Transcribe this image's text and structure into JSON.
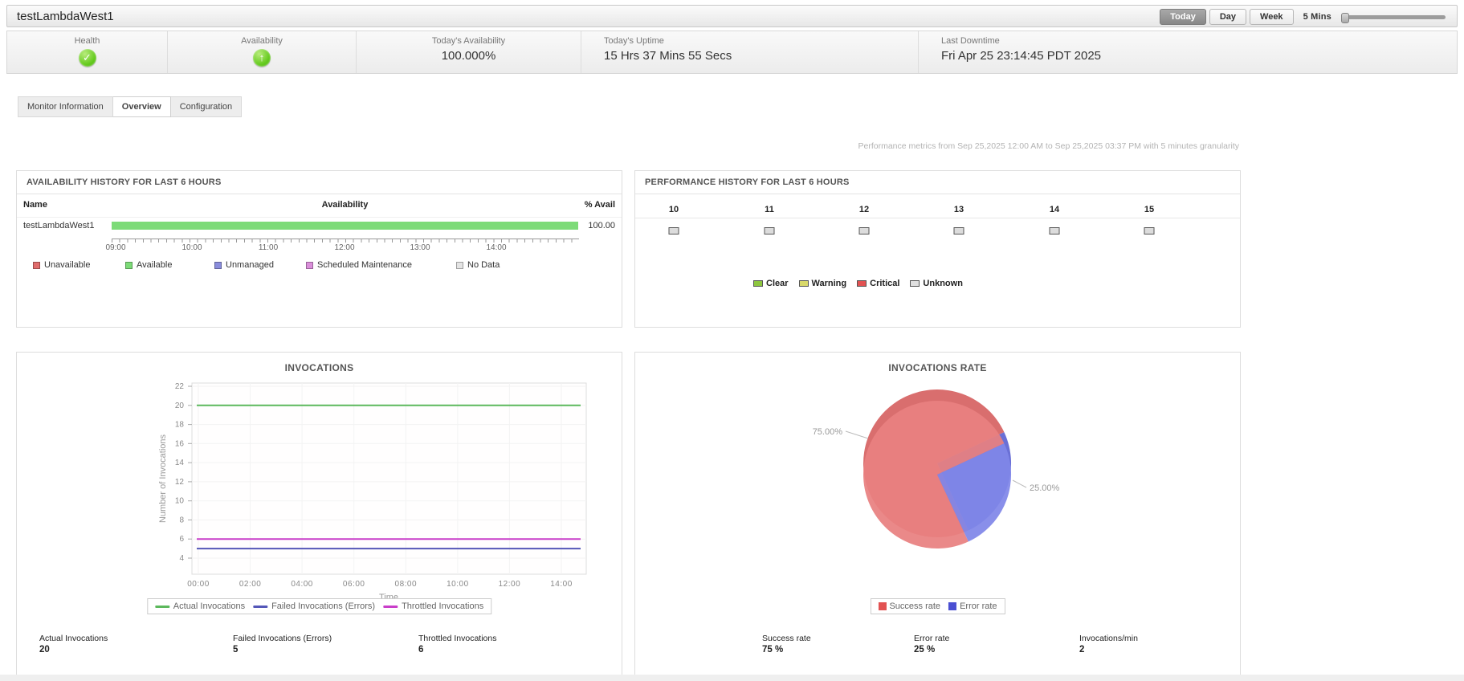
{
  "header": {
    "title": "testLambdaWest1",
    "range_buttons": [
      {
        "label": "Today",
        "active": true
      },
      {
        "label": "Day",
        "active": false
      },
      {
        "label": "Week",
        "active": false
      }
    ],
    "granularity": "5 Mins"
  },
  "status_bar": {
    "health": {
      "label": "Health",
      "icon": "check",
      "color": "#5bc617"
    },
    "availability": {
      "label": "Availability",
      "icon": "up-arrow",
      "color": "#5bc617"
    },
    "todays_availability": {
      "label": "Today's Availability",
      "value": "100.000%"
    },
    "todays_uptime": {
      "label": "Today's Uptime",
      "value": "15 Hrs 37 Mins 55 Secs"
    },
    "last_downtime": {
      "label": "Last Downtime",
      "value": "Fri Apr 25 23:14:45 PDT 2025"
    }
  },
  "tabs": [
    {
      "label": "Monitor Information",
      "active": false
    },
    {
      "label": "Overview",
      "active": true
    },
    {
      "label": "Configuration",
      "active": false
    }
  ],
  "metrics_note": "Performance metrics from Sep 25,2025 12:00 AM to Sep 25,2025 03:37 PM with 5 minutes granularity",
  "availability_panel": {
    "title": "AVAILABILITY HISTORY FOR LAST 6 HOURS",
    "columns": {
      "name": "Name",
      "availability": "Availability",
      "avail_pct": "% Avail"
    },
    "row": {
      "name": "testLambdaWest1",
      "avail_pct": "100.00",
      "bar_color": "#7ddb78"
    },
    "time_ticks": [
      "09:00",
      "10:00",
      "11:00",
      "12:00",
      "13:00",
      "14:00"
    ],
    "legend": [
      {
        "label": "Unavailable",
        "color": "#e06c6c"
      },
      {
        "label": "Available",
        "color": "#7ddb78"
      },
      {
        "label": "Unmanaged",
        "color": "#8a8ddc"
      },
      {
        "label": "Scheduled Maintenance",
        "color": "#da8fda"
      },
      {
        "label": "No Data",
        "color": "#e4e4e4"
      }
    ]
  },
  "performance_panel": {
    "title": "PERFORMANCE HISTORY FOR LAST 6 HOURS",
    "hours": [
      {
        "label": "10",
        "status": "Unknown",
        "color": "#dcdcdc"
      },
      {
        "label": "11",
        "status": "Unknown",
        "color": "#dcdcdc"
      },
      {
        "label": "12",
        "status": "Unknown",
        "color": "#dcdcdc"
      },
      {
        "label": "13",
        "status": "Unknown",
        "color": "#dcdcdc"
      },
      {
        "label": "14",
        "status": "Unknown",
        "color": "#dcdcdc"
      },
      {
        "label": "15",
        "status": "Unknown",
        "color": "#dcdcdc"
      }
    ],
    "legend": [
      {
        "label": "Clear",
        "color": "#8dc63f"
      },
      {
        "label": "Warning",
        "color": "#d9d96a"
      },
      {
        "label": "Critical",
        "color": "#e25252"
      },
      {
        "label": "Unknown",
        "color": "#e0e0e0"
      }
    ]
  },
  "invocations_panel": {
    "stats": [
      {
        "label": "Actual Invocations",
        "value": "20"
      },
      {
        "label": "Failed Invocations (Errors)",
        "value": "5"
      },
      {
        "label": "Throttled Invocations",
        "value": "6"
      }
    ]
  },
  "invocations_rate_panel": {
    "stats": [
      {
        "label": "Success rate",
        "value": "75 %"
      },
      {
        "label": "Error rate",
        "value": "25 %"
      },
      {
        "label": "Invocations/min",
        "value": "2"
      }
    ]
  },
  "chart_data": [
    {
      "type": "line",
      "title": "INVOCATIONS",
      "xlabel": "Time",
      "ylabel": "Number of Invocations",
      "x_ticks": [
        "00:00",
        "02:00",
        "04:00",
        "06:00",
        "08:00",
        "10:00",
        "12:00",
        "14:00"
      ],
      "y_ticks": [
        22,
        20,
        18,
        16,
        14,
        12,
        10,
        8,
        6,
        4
      ],
      "ylim": [
        3,
        23
      ],
      "grid": true,
      "legend_position": "bottom",
      "series": [
        {
          "name": "Actual Invocations",
          "color": "#5cb85c",
          "value": 20
        },
        {
          "name": "Failed Invocations (Errors)",
          "color": "#5457b8",
          "value": 5
        },
        {
          "name": "Throttled Invocations",
          "color": "#c93ec9",
          "value": 6
        }
      ]
    },
    {
      "type": "pie",
      "title": "INVOCATIONS RATE",
      "labels": [
        "Success rate",
        "Error rate"
      ],
      "values": [
        75,
        25
      ],
      "value_labels": [
        "75.00%",
        "25.00%"
      ],
      "colors": [
        "#e88080",
        "#8086e8"
      ],
      "rim_colors": [
        "#d96e6e",
        "#6a70d6"
      ],
      "legend_colors": [
        "#e25252",
        "#4a4fd2"
      ],
      "legend_position": "bottom"
    }
  ]
}
